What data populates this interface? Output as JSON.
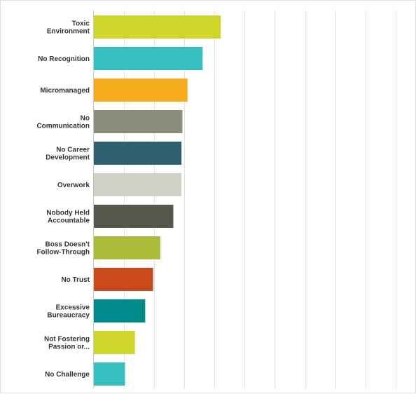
{
  "chart_data": {
    "type": "bar",
    "orientation": "horizontal",
    "categories": [
      [
        "Toxic",
        "Environment"
      ],
      [
        "No Recognition"
      ],
      [
        "Micromanaged"
      ],
      [
        "No",
        "Communication"
      ],
      [
        "No Career",
        "Development"
      ],
      [
        "Overwork"
      ],
      [
        "Nobody Held",
        "Accountable"
      ],
      [
        "Boss Doesn't",
        "Follow-Through"
      ],
      [
        "No Trust"
      ],
      [
        "Excessive",
        "Bureaucracy"
      ],
      [
        "Not Fostering",
        "Passion or..."
      ],
      [
        "No Challenge"
      ]
    ],
    "values": [
      42,
      36,
      31,
      29.3,
      29,
      29,
      26.3,
      22,
      19.6,
      17,
      13.6,
      10.3
    ],
    "colors": [
      "#cfd62a",
      "#36bfbf",
      "#f7ad1c",
      "#8b8c7b",
      "#2e6070",
      "#d1d0c4",
      "#56574a",
      "#acbe37",
      "#cb4a1c",
      "#008b8b",
      "#cfd62a",
      "#36bfbf"
    ],
    "xlim": [
      0,
      100
    ],
    "grid": true,
    "title": "",
    "xlabel": "",
    "ylabel": ""
  }
}
